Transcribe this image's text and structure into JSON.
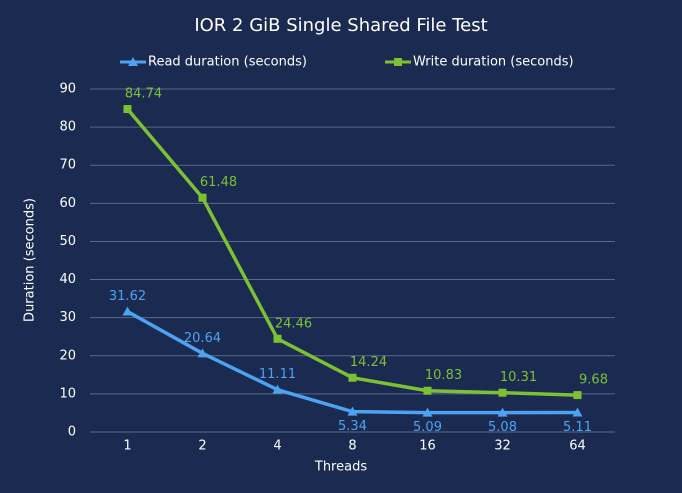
{
  "chart_data": {
    "type": "line",
    "title": "IOR 2 GiB Single Shared File Test",
    "x_label": "Threads",
    "y_label": "Duration (seconds)",
    "categories": [
      "1",
      "2",
      "4",
      "8",
      "16",
      "32",
      "64"
    ],
    "series": [
      {
        "name": "Read duration (seconds)",
        "color": "#4da3f0",
        "marker": "triangle",
        "values": [
          31.62,
          20.64,
          11.11,
          5.34,
          5.09,
          5.08,
          5.11
        ]
      },
      {
        "name": "Write duration (seconds)",
        "color": "#7dc034",
        "marker": "square",
        "values": [
          84.74,
          61.48,
          24.46,
          14.24,
          10.83,
          10.31,
          9.68
        ]
      }
    ],
    "ylim": [
      0,
      90
    ],
    "yticks": [
      0,
      10,
      20,
      30,
      40,
      50,
      60,
      70,
      80,
      90
    ],
    "grid": true,
    "legend": "top",
    "data_labels": true
  }
}
